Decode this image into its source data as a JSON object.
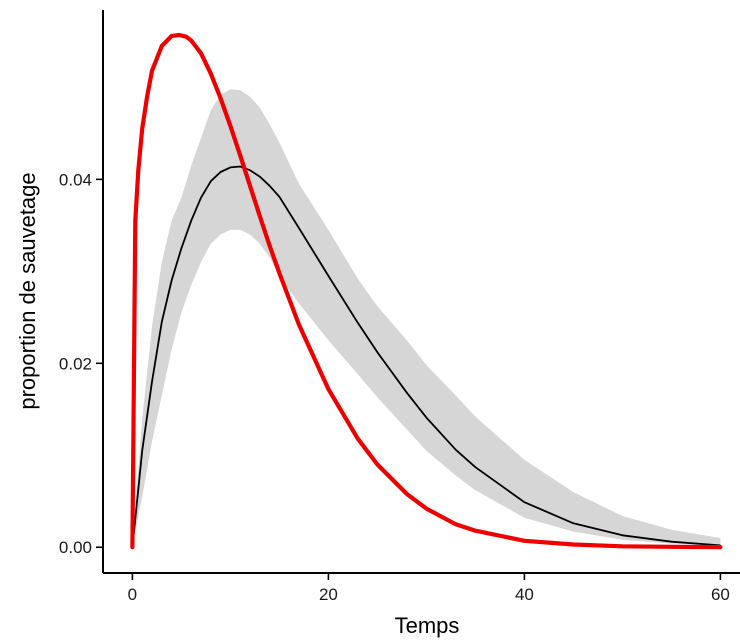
{
  "chart_data": {
    "type": "line",
    "xlabel": "Temps",
    "ylabel": "proportion de sauvetage",
    "xlim": [
      -3,
      62
    ],
    "ylim": [
      -0.0028,
      0.0595
    ],
    "x_ticks": [
      0,
      20,
      40,
      60
    ],
    "x_tick_labels": [
      "0",
      "20",
      "40",
      "60"
    ],
    "y_ticks": [
      0.0,
      0.02,
      0.04
    ],
    "y_tick_labels": [
      "0.00",
      "0.02",
      "0.04"
    ],
    "grid": false,
    "legend": "none",
    "colors": {
      "red_curve": "#ee0000",
      "mean_curve": "#000000",
      "band": "#d6d6d6"
    },
    "series": [
      {
        "style": "band",
        "x": [
          0,
          1,
          2,
          3,
          4,
          5,
          6,
          7,
          8,
          9,
          10,
          11,
          12,
          13,
          14,
          15,
          17,
          20,
          23,
          25,
          28,
          30,
          33,
          35,
          40,
          45,
          50,
          55,
          60
        ],
        "lower": [
          0.0,
          0.0055,
          0.0115,
          0.0165,
          0.0215,
          0.0255,
          0.0285,
          0.031,
          0.033,
          0.034,
          0.0345,
          0.0345,
          0.034,
          0.033,
          0.0315,
          0.0295,
          0.0265,
          0.0225,
          0.0188,
          0.0163,
          0.0128,
          0.0105,
          0.0078,
          0.0062,
          0.0032,
          0.0017,
          0.0008,
          0.0004,
          0.0002
        ],
        "upper": [
          0.0,
          0.014,
          0.024,
          0.031,
          0.0355,
          0.038,
          0.0415,
          0.0445,
          0.0475,
          0.0492,
          0.0498,
          0.0497,
          0.049,
          0.0478,
          0.046,
          0.044,
          0.0395,
          0.0345,
          0.0292,
          0.0262,
          0.0225,
          0.0198,
          0.0165,
          0.0142,
          0.0095,
          0.006,
          0.0034,
          0.0019,
          0.001
        ]
      },
      {
        "style": "mean",
        "x": [
          0,
          1,
          2,
          3,
          4,
          5,
          6,
          7,
          8,
          9,
          10,
          11,
          12,
          13,
          14,
          15,
          17,
          20,
          23,
          25,
          28,
          30,
          33,
          35,
          40,
          45,
          50,
          55,
          60
        ],
        "y": [
          0.0,
          0.0105,
          0.018,
          0.0245,
          0.029,
          0.0325,
          0.0355,
          0.038,
          0.0398,
          0.0408,
          0.0413,
          0.0414,
          0.041,
          0.0403,
          0.0393,
          0.0381,
          0.0347,
          0.0295,
          0.0244,
          0.0212,
          0.0168,
          0.0141,
          0.0106,
          0.0087,
          0.0049,
          0.0026,
          0.0013,
          0.0006,
          0.0002
        ]
      },
      {
        "style": "red",
        "x": [
          0,
          0.3,
          0.6,
          1,
          1.5,
          2,
          3,
          4,
          4.8,
          5.5,
          6,
          7,
          8,
          9,
          10,
          11,
          12,
          13,
          14,
          15,
          17,
          20,
          23,
          25,
          28,
          30,
          33,
          35,
          40,
          45,
          50,
          55,
          60
        ],
        "y": [
          0.0,
          0.0355,
          0.041,
          0.0455,
          0.049,
          0.0518,
          0.0545,
          0.0556,
          0.0557,
          0.0555,
          0.0551,
          0.0537,
          0.0515,
          0.0488,
          0.0458,
          0.0426,
          0.0393,
          0.036,
          0.0328,
          0.0298,
          0.0242,
          0.0172,
          0.0118,
          0.009,
          0.0058,
          0.0042,
          0.0025,
          0.0018,
          0.0007,
          0.0003,
          0.0001,
          5e-05,
          2e-05
        ]
      }
    ]
  }
}
